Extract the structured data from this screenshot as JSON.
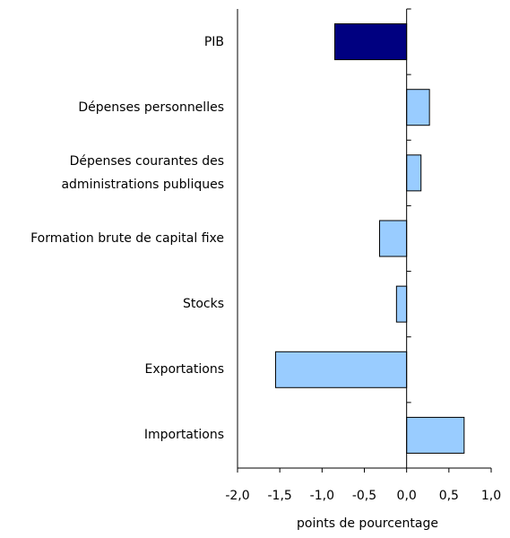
{
  "chart_data": {
    "type": "hbar",
    "categories": [
      "PIB",
      "Dépenses personnelles",
      "Dépenses courantes des administrations publiques",
      "Formation brute de capital fixe",
      "Stocks",
      "Exportations",
      "Importations"
    ],
    "values": [
      -0.85,
      0.27,
      0.17,
      -0.32,
      -0.12,
      -1.55,
      0.68
    ],
    "colors": [
      "#000080",
      "#99ccff",
      "#99ccff",
      "#99ccff",
      "#99ccff",
      "#99ccff",
      "#99ccff"
    ],
    "xlim": [
      -2,
      1
    ],
    "xticks": [
      {
        "value": -2,
        "label": "-2,0"
      },
      {
        "value": -1.5,
        "label": "-1,5"
      },
      {
        "value": -1,
        "label": "-1,0"
      },
      {
        "value": -0.5,
        "label": "-0,5"
      },
      {
        "value": 0,
        "label": "0,0"
      },
      {
        "value": 0.5,
        "label": "0,5"
      },
      {
        "value": 1,
        "label": "1,0"
      }
    ],
    "xlabel": "points de pourcentage"
  }
}
